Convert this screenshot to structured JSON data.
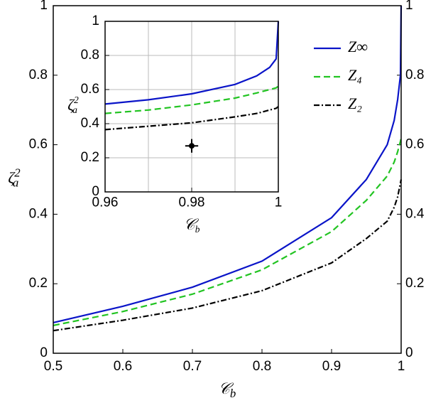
{
  "chart_data": [
    {
      "type": "line",
      "xlabel": {
        "base": "𝒞",
        "sub": "b"
      },
      "ylabel": {
        "base": "ζ",
        "sub": "a",
        "sup": "2"
      },
      "xlim": [
        0.5,
        1
      ],
      "ylim": [
        0,
        1
      ],
      "xticks": [
        0.5,
        0.6,
        0.7,
        0.8,
        0.9,
        1
      ],
      "yticks": [
        0,
        0.2,
        0.4,
        0.6,
        0.8,
        1
      ],
      "grid": false,
      "legend": "upper right",
      "x": [
        0.5,
        0.6,
        0.7,
        0.8,
        0.9,
        0.95,
        0.98,
        0.99,
        0.995,
        0.999,
        1
      ],
      "series": [
        {
          "name": "Z∞",
          "color": "#0a14c8",
          "dash": "solid",
          "values": [
            0.088,
            0.135,
            0.19,
            0.265,
            0.39,
            0.5,
            0.6,
            0.67,
            0.73,
            0.8,
            1.0
          ]
        },
        {
          "name": "Z₄",
          "color": "#22c422",
          "dash": "dashed",
          "values": [
            0.08,
            0.12,
            0.17,
            0.24,
            0.35,
            0.44,
            0.51,
            0.55,
            0.58,
            0.61,
            0.62
          ]
        },
        {
          "name": "Z₂",
          "color": "#000000",
          "dash": "dashdot",
          "values": [
            0.065,
            0.095,
            0.13,
            0.18,
            0.26,
            0.33,
            0.38,
            0.42,
            0.45,
            0.49,
            0.5
          ]
        }
      ]
    },
    {
      "type": "line",
      "xlabel": {
        "base": "𝒞",
        "sub": "b"
      },
      "ylabel": {
        "base": "ζ",
        "sub": "a",
        "sup": "2"
      },
      "xlim": [
        0.96,
        1
      ],
      "ylim": [
        0,
        1
      ],
      "xticks": [
        0.96,
        0.98,
        1
      ],
      "xminor": [
        0.97,
        0.99
      ],
      "yticks": [
        0,
        0.2,
        0.4,
        0.6,
        0.8,
        1
      ],
      "grid": true,
      "x": [
        0.96,
        0.97,
        0.98,
        0.99,
        0.995,
        0.998,
        0.9995,
        1
      ],
      "series": [
        {
          "color": "#0a14c8",
          "dash": "solid",
          "values": [
            0.515,
            0.54,
            0.575,
            0.63,
            0.68,
            0.73,
            0.78,
            1.0
          ]
        },
        {
          "color": "#22c422",
          "dash": "dashed",
          "values": [
            0.46,
            0.48,
            0.51,
            0.55,
            0.58,
            0.6,
            0.61,
            0.62
          ]
        },
        {
          "color": "#000000",
          "dash": "dashdot",
          "values": [
            0.365,
            0.385,
            0.405,
            0.44,
            0.46,
            0.48,
            0.49,
            0.5
          ]
        }
      ],
      "points": {
        "color": "#000000",
        "x": [
          0.98
        ],
        "y": [
          0.27
        ],
        "xerr": [
          0.0015
        ],
        "yerr": [
          0.04
        ]
      }
    }
  ]
}
